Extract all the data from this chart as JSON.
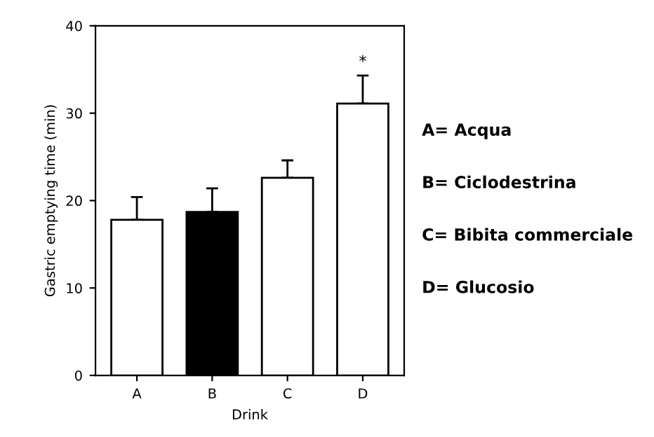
{
  "chart_data": {
    "type": "bar",
    "xlabel": "Drink",
    "ylabel": "Gastric emptying time (min)",
    "categories": [
      "A",
      "B",
      "C",
      "D"
    ],
    "values": [
      17.8,
      18.7,
      22.6,
      31.1
    ],
    "errors": [
      [
        17.8,
        20.4
      ],
      [
        18.7,
        21.4
      ],
      [
        22.6,
        24.6
      ],
      [
        31.1,
        34.3
      ]
    ],
    "colors": [
      "#ffffff",
      "#000000",
      "#ffffff",
      "#ffffff"
    ],
    "ylim": [
      0,
      40
    ],
    "yticks": [
      0,
      10,
      20,
      30,
      40
    ],
    "grid": false,
    "legend": false,
    "annotations": [
      "*",
      "A= Acqua",
      "B= Ciclodestrina",
      "C= Bibita commerciale",
      "D= Glucosio"
    ]
  }
}
